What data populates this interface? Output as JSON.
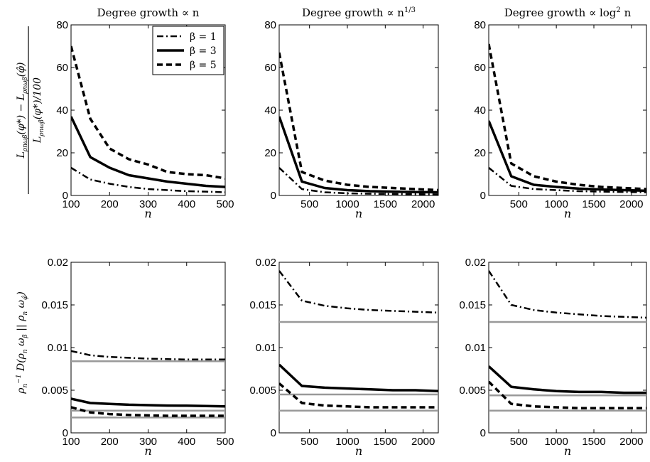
{
  "figure": {
    "ylabel_top": "L_ρnωβ(φ*) − L_ρnωβ(φ̂) / (L_ρnωβ(φ*)/100)",
    "ylabel_bottom": "ρn⁻¹ D(ρn ωβ || ρn ωφ̂)"
  },
  "legend": [
    {
      "label": "β = 1",
      "style": "dashdot"
    },
    {
      "label": "β = 3",
      "style": "solid"
    },
    {
      "label": "β = 5",
      "style": "dashed"
    }
  ],
  "colors": {
    "series": "#000000",
    "reference": "#999999"
  },
  "chart_data": [
    {
      "id": "top-linear",
      "type": "line",
      "title": "Degree growth ∝ n",
      "xlabel": "n",
      "xlim": [
        100,
        500
      ],
      "ylim": [
        0,
        80
      ],
      "xticks": [
        100,
        200,
        300,
        400,
        500
      ],
      "yticks": [
        0,
        20,
        40,
        60,
        80
      ],
      "grid": false,
      "legend": "top-right",
      "series": [
        {
          "name": "β = 1",
          "x": [
            100,
            150,
            200,
            250,
            300,
            350,
            400,
            450,
            500
          ],
          "y": [
            13,
            7.5,
            5.5,
            4,
            3,
            2.5,
            2,
            1.8,
            1.5
          ]
        },
        {
          "name": "β = 3",
          "x": [
            100,
            150,
            200,
            250,
            300,
            350,
            400,
            450,
            500
          ],
          "y": [
            37,
            18,
            13,
            9.5,
            8,
            6.5,
            5.5,
            4.5,
            4
          ]
        },
        {
          "name": "β = 5",
          "x": [
            100,
            150,
            200,
            250,
            300,
            350,
            400,
            450,
            500
          ],
          "y": [
            70,
            36,
            22,
            17,
            14.5,
            11,
            10,
            9.5,
            8
          ]
        }
      ]
    },
    {
      "id": "top-cuberoot",
      "type": "line",
      "title": "Degree growth ∝ n^{1/3}",
      "xlabel": "n",
      "xlim": [
        100,
        2200
      ],
      "ylim": [
        0,
        80
      ],
      "xticks": [
        500,
        1000,
        1500,
        2000
      ],
      "yticks": [
        0,
        20,
        40,
        60,
        80
      ],
      "grid": false,
      "series": [
        {
          "name": "β = 1",
          "x": [
            100,
            400,
            700,
            1000,
            1300,
            1600,
            1900,
            2200
          ],
          "y": [
            13,
            3,
            1.5,
            1,
            0.8,
            0.7,
            0.6,
            0.5
          ]
        },
        {
          "name": "β = 3",
          "x": [
            100,
            400,
            700,
            1000,
            1300,
            1600,
            1900,
            2200
          ],
          "y": [
            37,
            6.5,
            3.5,
            2.5,
            2,
            1.8,
            1.6,
            1.5
          ]
        },
        {
          "name": "β = 5",
          "x": [
            100,
            400,
            700,
            1000,
            1300,
            1600,
            1900,
            2200
          ],
          "y": [
            67,
            11,
            7,
            5,
            4,
            3.5,
            3,
            2.5
          ]
        }
      ]
    },
    {
      "id": "top-log2",
      "type": "line",
      "title": "Degree growth ∝ log^{2} n",
      "xlabel": "n",
      "xlim": [
        100,
        2200
      ],
      "ylim": [
        0,
        80
      ],
      "xticks": [
        500,
        1000,
        1500,
        2000
      ],
      "yticks": [
        0,
        20,
        40,
        60,
        80
      ],
      "grid": false,
      "series": [
        {
          "name": "β = 1",
          "x": [
            100,
            400,
            700,
            1000,
            1300,
            1600,
            1900,
            2200
          ],
          "y": [
            13,
            4.5,
            3,
            2.5,
            2,
            1.8,
            1.6,
            1.5
          ]
        },
        {
          "name": "β = 3",
          "x": [
            100,
            400,
            700,
            1000,
            1300,
            1600,
            1900,
            2200
          ],
          "y": [
            35,
            9,
            5,
            4,
            3.2,
            2.8,
            2.5,
            2.2
          ]
        },
        {
          "name": "β = 5",
          "x": [
            100,
            400,
            700,
            1000,
            1300,
            1600,
            1900,
            2200
          ],
          "y": [
            71,
            15,
            9,
            6.5,
            5,
            4,
            3.5,
            3
          ]
        }
      ]
    },
    {
      "id": "bottom-linear",
      "type": "line",
      "xlabel": "n",
      "xlim": [
        100,
        500
      ],
      "ylim": [
        0,
        0.02
      ],
      "xticks": [
        100,
        200,
        300,
        400,
        500
      ],
      "yticks": [
        0,
        0.005,
        0.01,
        0.015,
        0.02
      ],
      "yticklabels": [
        "0",
        "0.005",
        "0.01",
        "0.015",
        "0.02"
      ],
      "grid": false,
      "series": [
        {
          "name": "β = 1",
          "x": [
            100,
            150,
            200,
            250,
            300,
            350,
            400,
            450,
            500
          ],
          "y": [
            0.0096,
            0.0091,
            0.0089,
            0.0088,
            0.0087,
            0.00865,
            0.0086,
            0.0086,
            0.0086
          ]
        },
        {
          "name": "β = 3",
          "x": [
            100,
            150,
            200,
            250,
            300,
            350,
            400,
            450,
            500
          ],
          "y": [
            0.004,
            0.0035,
            0.0034,
            0.0033,
            0.00325,
            0.0032,
            0.00318,
            0.00315,
            0.0031
          ]
        },
        {
          "name": "β = 5",
          "x": [
            100,
            150,
            200,
            250,
            300,
            350,
            400,
            450,
            500
          ],
          "y": [
            0.003,
            0.0024,
            0.0022,
            0.0021,
            0.00205,
            0.002,
            0.002,
            0.002,
            0.002
          ]
        }
      ],
      "reference_lines": [
        0.0084,
        0.0026,
        0.0018
      ]
    },
    {
      "id": "bottom-cuberoot",
      "type": "line",
      "xlabel": "n",
      "xlim": [
        100,
        2200
      ],
      "ylim": [
        0,
        0.02
      ],
      "xticks": [
        500,
        1000,
        1500,
        2000
      ],
      "yticks": [
        0,
        0.005,
        0.01,
        0.015,
        0.02
      ],
      "yticklabels": [
        "0",
        "0.005",
        "0.01",
        "0.015",
        "0.02"
      ],
      "grid": false,
      "series": [
        {
          "name": "β = 1",
          "x": [
            100,
            400,
            700,
            1000,
            1300,
            1600,
            1900,
            2200
          ],
          "y": [
            0.019,
            0.0155,
            0.0149,
            0.0146,
            0.0144,
            0.0143,
            0.0142,
            0.0141
          ]
        },
        {
          "name": "β = 3",
          "x": [
            100,
            400,
            700,
            1000,
            1300,
            1600,
            1900,
            2200
          ],
          "y": [
            0.008,
            0.0055,
            0.0053,
            0.0052,
            0.0051,
            0.005,
            0.005,
            0.0049
          ]
        },
        {
          "name": "β = 5",
          "x": [
            100,
            400,
            700,
            1000,
            1300,
            1600,
            1900,
            2200
          ],
          "y": [
            0.0058,
            0.0035,
            0.0032,
            0.0031,
            0.003,
            0.003,
            0.003,
            0.003
          ]
        }
      ],
      "reference_lines": [
        0.013,
        0.0045,
        0.0026
      ]
    },
    {
      "id": "bottom-log2",
      "type": "line",
      "xlabel": "n",
      "xlim": [
        100,
        2200
      ],
      "ylim": [
        0,
        0.02
      ],
      "xticks": [
        500,
        1000,
        1500,
        2000
      ],
      "yticks": [
        0,
        0.005,
        0.01,
        0.015,
        0.02
      ],
      "yticklabels": [
        "0",
        "0.005",
        "0.01",
        "0.015",
        "0.02"
      ],
      "grid": false,
      "series": [
        {
          "name": "β = 1",
          "x": [
            100,
            400,
            700,
            1000,
            1300,
            1600,
            1900,
            2200
          ],
          "y": [
            0.019,
            0.015,
            0.0144,
            0.0141,
            0.0139,
            0.0137,
            0.0136,
            0.0135
          ]
        },
        {
          "name": "β = 3",
          "x": [
            100,
            400,
            700,
            1000,
            1300,
            1600,
            1900,
            2200
          ],
          "y": [
            0.0078,
            0.0054,
            0.0051,
            0.0049,
            0.0048,
            0.0048,
            0.0047,
            0.0047
          ]
        },
        {
          "name": "β = 5",
          "x": [
            100,
            400,
            700,
            1000,
            1300,
            1600,
            1900,
            2200
          ],
          "y": [
            0.006,
            0.0034,
            0.0031,
            0.003,
            0.0029,
            0.0029,
            0.0029,
            0.0029
          ]
        }
      ],
      "reference_lines": [
        0.013,
        0.0044,
        0.0026
      ]
    }
  ]
}
